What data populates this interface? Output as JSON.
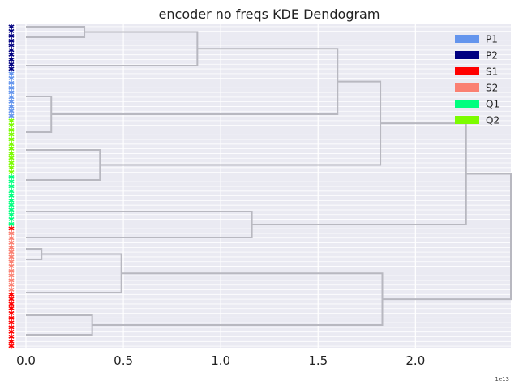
{
  "chart_data": {
    "type": "dendrogram",
    "title": "encoder no freqs KDE Dendogram",
    "orientation": "horizontal",
    "xlabel": "",
    "ylabel": "",
    "x_offset_label": "1e13",
    "xlim": [
      -0.05,
      2.49
    ],
    "xticks": [
      0.0,
      0.5,
      1.0,
      1.5,
      2.0
    ],
    "xtick_labels": [
      "0.0",
      "0.5",
      "1.0",
      "1.5",
      "2.0"
    ],
    "grid": true,
    "legend_position": "top-right",
    "legend": [
      {
        "label": "P1",
        "color": "#6495ed"
      },
      {
        "label": "P2",
        "color": "#000080"
      },
      {
        "label": "S1",
        "color": "#ff0000"
      },
      {
        "label": "S2",
        "color": "#fa8072"
      },
      {
        "label": "Q1",
        "color": "#00ff7f"
      },
      {
        "label": "Q2",
        "color": "#7cfc00"
      }
    ],
    "leaf_groups": [
      {
        "label": "P2",
        "count": 10
      },
      {
        "label": "P1",
        "count": 10
      },
      {
        "label": "Q2",
        "count": 12
      },
      {
        "label": "Q1",
        "count": 11
      },
      {
        "label": "S1",
        "count": 1
      },
      {
        "label": "S2",
        "count": 13
      },
      {
        "label": "S1",
        "count": 12
      }
    ],
    "merges": [
      {
        "id": "c1",
        "height": 0.3,
        "top": 3,
        "bottom": 16
      },
      {
        "id": "c2",
        "height": 0.88,
        "top": "c1",
        "bottom": 51
      },
      {
        "id": "c3",
        "height": 0.13,
        "top": 89,
        "bottom": 133
      },
      {
        "id": "c4",
        "height": 1.6,
        "top": "c2",
        "bottom": "c3"
      },
      {
        "id": "c5",
        "height": 0.38,
        "top": 155,
        "bottom": 192
      },
      {
        "id": "c6",
        "height": 1.82,
        "top": "c4",
        "bottom": "c5"
      },
      {
        "id": "c7",
        "height": 1.16,
        "top": 231,
        "bottom": 263
      },
      {
        "id": "c8",
        "height": 2.26,
        "top": "c6",
        "bottom": "c7"
      },
      {
        "id": "c9",
        "height": 0.08,
        "top": 277,
        "bottom": 290
      },
      {
        "id": "c10",
        "height": 0.49,
        "top": "c9",
        "bottom": 331
      },
      {
        "id": "c11",
        "height": 0.34,
        "top": 359,
        "bottom": 383
      },
      {
        "id": "c12",
        "height": 1.83,
        "top": "c10",
        "bottom": "c11"
      },
      {
        "id": "c13",
        "height": 2.49,
        "top": "c8",
        "bottom": "c12"
      }
    ]
  }
}
